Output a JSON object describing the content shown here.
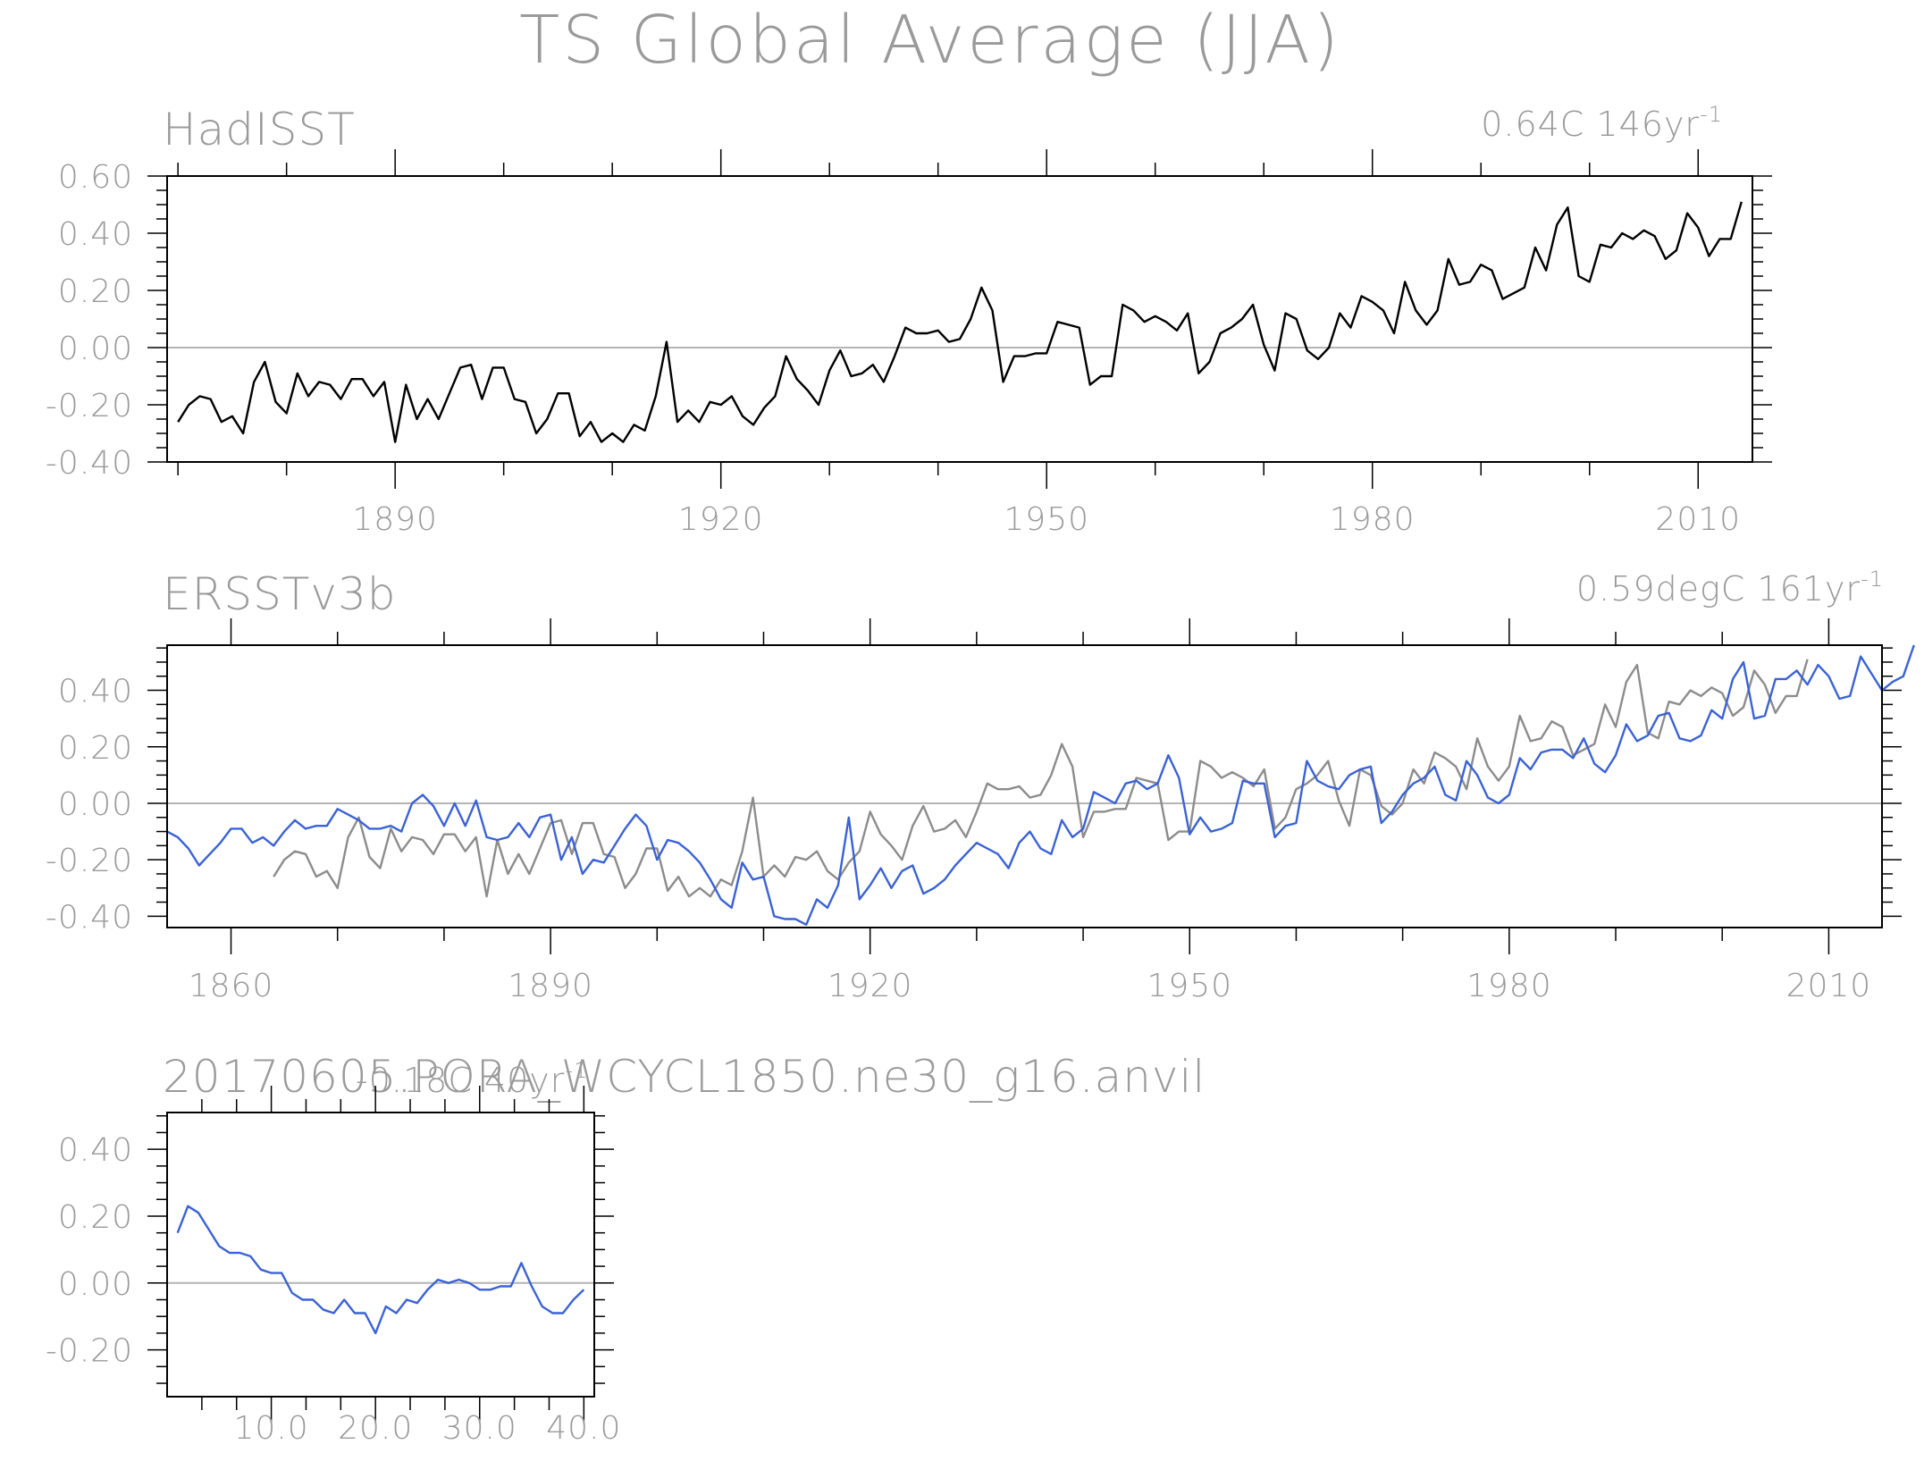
{
  "title": "TS Global Average (JJA)",
  "colors": {
    "obs": "#000000",
    "obs_ref": "#8c8c8c",
    "model": "#3a62d4",
    "zero": "#b4b4b4",
    "frame": "#000000",
    "text": "#9a9a9a"
  },
  "chart_data": [
    {
      "type": "line",
      "title": "HadISST",
      "trend_label": "0.64C 146yr",
      "trend_exp": "-1",
      "xlim": [
        1869,
        2015
      ],
      "ylim": [
        -0.4,
        0.6
      ],
      "xticks": [
        1890,
        1920,
        1950,
        1980,
        2010
      ],
      "xtick_labels": [
        "1890",
        "1920",
        "1950",
        "1980",
        "2010"
      ],
      "yticks": [
        -0.4,
        -0.2,
        0.0,
        0.2,
        0.4,
        0.6
      ],
      "ytick_labels": [
        "-0.40",
        "-0.20",
        "0.00",
        "0.20",
        "0.40",
        "0.60"
      ],
      "series": [
        {
          "role": "obs",
          "x_start": 1870,
          "values": [
            -0.26,
            -0.2,
            -0.17,
            -0.18,
            -0.26,
            -0.24,
            -0.3,
            -0.12,
            -0.05,
            -0.19,
            -0.23,
            -0.09,
            -0.17,
            -0.12,
            -0.13,
            -0.18,
            -0.11,
            -0.11,
            -0.17,
            -0.12,
            -0.33,
            -0.13,
            -0.25,
            -0.18,
            -0.25,
            -0.16,
            -0.07,
            -0.06,
            -0.18,
            -0.07,
            -0.07,
            -0.18,
            -0.19,
            -0.3,
            -0.25,
            -0.16,
            -0.16,
            -0.31,
            -0.26,
            -0.33,
            -0.3,
            -0.33,
            -0.27,
            -0.29,
            -0.17,
            0.02,
            -0.26,
            -0.22,
            -0.26,
            -0.19,
            -0.2,
            -0.17,
            -0.24,
            -0.27,
            -0.21,
            -0.17,
            -0.03,
            -0.11,
            -0.15,
            -0.2,
            -0.08,
            -0.01,
            -0.1,
            -0.09,
            -0.06,
            -0.12,
            -0.03,
            0.07,
            0.05,
            0.05,
            0.06,
            0.02,
            0.03,
            0.1,
            0.21,
            0.13,
            -0.12,
            -0.03,
            -0.03,
            -0.02,
            -0.02,
            0.09,
            0.08,
            0.07,
            -0.13,
            -0.1,
            -0.1,
            0.15,
            0.13,
            0.09,
            0.11,
            0.09,
            0.06,
            0.12,
            -0.09,
            -0.05,
            0.05,
            0.07,
            0.1,
            0.15,
            0.01,
            -0.08,
            0.12,
            0.1,
            -0.01,
            -0.04,
            0.0,
            0.12,
            0.07,
            0.18,
            0.16,
            0.13,
            0.05,
            0.23,
            0.13,
            0.08,
            0.13,
            0.31,
            0.22,
            0.23,
            0.29,
            0.27,
            0.17,
            0.19,
            0.21,
            0.35,
            0.27,
            0.43,
            0.49,
            0.25,
            0.23,
            0.36,
            0.35,
            0.4,
            0.38,
            0.41,
            0.39,
            0.31,
            0.34,
            0.47,
            0.42,
            0.32,
            0.38,
            0.38,
            0.51
          ]
        }
      ]
    },
    {
      "type": "line",
      "title": "ERSSTv3b",
      "trend_label": "0.59degC 161yr",
      "trend_exp": "-1",
      "xlim": [
        1854,
        2015
      ],
      "ylim": [
        -0.44,
        0.56
      ],
      "xticks": [
        1860,
        1890,
        1920,
        1950,
        1980,
        2010
      ],
      "xtick_labels": [
        "1860",
        "1890",
        "1920",
        "1950",
        "1980",
        "2010"
      ],
      "yticks": [
        -0.4,
        -0.2,
        0.0,
        0.2,
        0.4
      ],
      "ytick_labels": [
        "-0.40",
        "-0.20",
        "0.00",
        "0.20",
        "0.40"
      ],
      "series": [
        {
          "role": "obs_ref",
          "x_start": 1864,
          "values": [
            -0.26,
            -0.2,
            -0.17,
            -0.18,
            -0.26,
            -0.24,
            -0.3,
            -0.12,
            -0.05,
            -0.19,
            -0.23,
            -0.09,
            -0.17,
            -0.12,
            -0.13,
            -0.18,
            -0.11,
            -0.11,
            -0.17,
            -0.12,
            -0.33,
            -0.13,
            -0.25,
            -0.18,
            -0.25,
            -0.16,
            -0.07,
            -0.06,
            -0.18,
            -0.07,
            -0.07,
            -0.18,
            -0.19,
            -0.3,
            -0.25,
            -0.16,
            -0.16,
            -0.31,
            -0.26,
            -0.33,
            -0.3,
            -0.33,
            -0.27,
            -0.29,
            -0.17,
            0.02,
            -0.26,
            -0.22,
            -0.26,
            -0.19,
            -0.2,
            -0.17,
            -0.24,
            -0.27,
            -0.21,
            -0.17,
            -0.03,
            -0.11,
            -0.15,
            -0.2,
            -0.08,
            -0.01,
            -0.1,
            -0.09,
            -0.06,
            -0.12,
            -0.03,
            0.07,
            0.05,
            0.05,
            0.06,
            0.02,
            0.03,
            0.1,
            0.21,
            0.13,
            -0.12,
            -0.03,
            -0.03,
            -0.02,
            -0.02,
            0.09,
            0.08,
            0.07,
            -0.13,
            -0.1,
            -0.1,
            0.15,
            0.13,
            0.09,
            0.11,
            0.09,
            0.06,
            0.12,
            -0.09,
            -0.05,
            0.05,
            0.07,
            0.1,
            0.15,
            0.01,
            -0.08,
            0.12,
            0.1,
            -0.01,
            -0.04,
            0.0,
            0.12,
            0.07,
            0.18,
            0.16,
            0.13,
            0.05,
            0.23,
            0.13,
            0.08,
            0.13,
            0.31,
            0.22,
            0.23,
            0.29,
            0.27,
            0.17,
            0.19,
            0.21,
            0.35,
            0.27,
            0.43,
            0.49,
            0.25,
            0.23,
            0.36,
            0.35,
            0.4,
            0.38,
            0.41,
            0.39,
            0.31,
            0.34,
            0.47,
            0.42,
            0.32,
            0.38,
            0.38,
            0.51
          ]
        },
        {
          "role": "model",
          "x_start": 1854,
          "values": [
            -0.1,
            -0.12,
            -0.16,
            -0.22,
            -0.18,
            -0.14,
            -0.09,
            -0.09,
            -0.14,
            -0.12,
            -0.15,
            -0.1,
            -0.06,
            -0.09,
            -0.08,
            -0.08,
            -0.02,
            -0.04,
            -0.06,
            -0.09,
            -0.09,
            -0.08,
            -0.1,
            0.0,
            0.03,
            -0.01,
            -0.08,
            0.0,
            -0.08,
            0.01,
            -0.12,
            -0.13,
            -0.12,
            -0.07,
            -0.12,
            -0.05,
            -0.04,
            -0.2,
            -0.12,
            -0.25,
            -0.2,
            -0.21,
            -0.15,
            -0.09,
            -0.04,
            -0.08,
            -0.2,
            -0.13,
            -0.14,
            -0.17,
            -0.21,
            -0.27,
            -0.34,
            -0.37,
            -0.21,
            -0.27,
            -0.26,
            -0.4,
            -0.41,
            -0.41,
            -0.43,
            -0.34,
            -0.37,
            -0.29,
            -0.05,
            -0.34,
            -0.29,
            -0.23,
            -0.3,
            -0.24,
            -0.22,
            -0.32,
            -0.3,
            -0.27,
            -0.22,
            -0.18,
            -0.14,
            -0.16,
            -0.18,
            -0.23,
            -0.14,
            -0.1,
            -0.16,
            -0.18,
            -0.06,
            -0.12,
            -0.09,
            0.04,
            0.02,
            0.0,
            0.07,
            0.08,
            0.05,
            0.07,
            0.17,
            0.09,
            -0.11,
            -0.05,
            -0.1,
            -0.09,
            -0.07,
            0.08,
            0.07,
            0.07,
            -0.12,
            -0.08,
            -0.07,
            0.15,
            0.08,
            0.06,
            0.05,
            0.1,
            0.12,
            0.13,
            -0.07,
            -0.03,
            0.03,
            0.07,
            0.09,
            0.13,
            0.03,
            0.01,
            0.15,
            0.1,
            0.02,
            0.0,
            0.03,
            0.16,
            0.12,
            0.18,
            0.19,
            0.19,
            0.16,
            0.23,
            0.14,
            0.11,
            0.17,
            0.28,
            0.22,
            0.24,
            0.31,
            0.32,
            0.23,
            0.22,
            0.24,
            0.33,
            0.3,
            0.44,
            0.5,
            0.3,
            0.31,
            0.44,
            0.44,
            0.47,
            0.42,
            0.49,
            0.45,
            0.37,
            0.38,
            0.52,
            0.46,
            0.4,
            0.43,
            0.45,
            0.56
          ]
        }
      ]
    },
    {
      "type": "line",
      "title": "20170605.PORA_WCYCL1850.ne30_g16.anvil",
      "trend_label": "-0.18C 40yr",
      "trend_exp": "-1",
      "xlim": [
        0,
        41
      ],
      "ylim": [
        -0.34,
        0.51
      ],
      "xticks": [
        10,
        20,
        30,
        40
      ],
      "xtick_labels": [
        "10.0",
        "20.0",
        "30.0",
        "40.0"
      ],
      "yticks": [
        -0.2,
        0.0,
        0.2,
        0.4
      ],
      "ytick_labels": [
        "-0.20",
        "0.00",
        "0.20",
        "0.40"
      ],
      "series": [
        {
          "role": "model",
          "x_start": 1,
          "values": [
            0.15,
            0.23,
            0.21,
            0.16,
            0.11,
            0.09,
            0.09,
            0.08,
            0.04,
            0.03,
            0.03,
            -0.03,
            -0.05,
            -0.05,
            -0.08,
            -0.09,
            -0.05,
            -0.09,
            -0.09,
            -0.15,
            -0.07,
            -0.09,
            -0.05,
            -0.06,
            -0.02,
            0.01,
            0.0,
            0.01,
            0.0,
            -0.02,
            -0.02,
            -0.01,
            -0.01,
            0.06,
            -0.01,
            -0.07,
            -0.09,
            -0.09,
            -0.05,
            -0.02
          ]
        }
      ]
    }
  ]
}
